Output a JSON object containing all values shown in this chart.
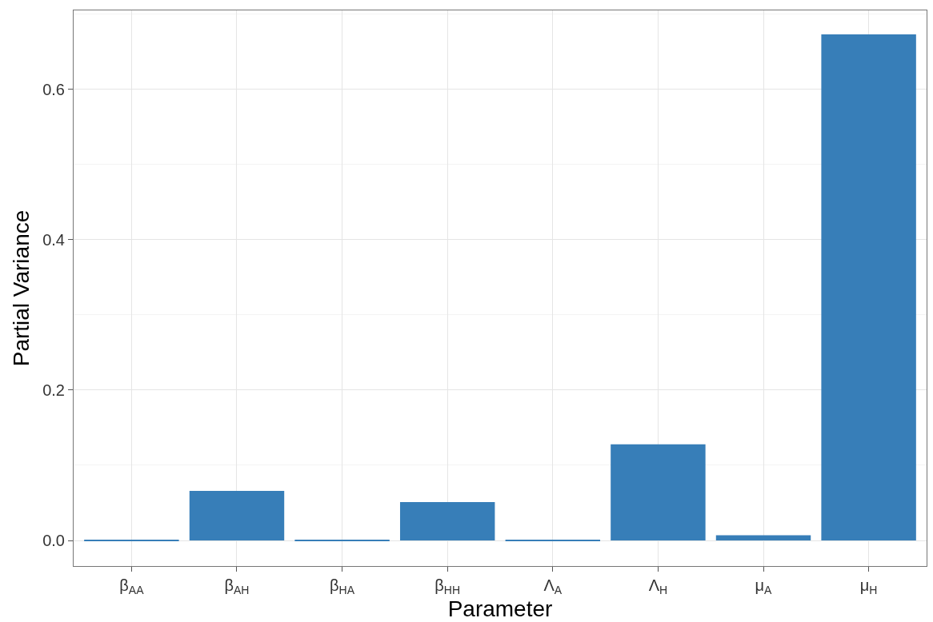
{
  "chart_data": {
    "type": "bar",
    "xlabel": "Parameter",
    "ylabel": "Partial Variance",
    "categories": [
      "β$_{AA}$",
      "β$_{AH}$",
      "β$_{HA}$",
      "β$_{HH}$",
      "Λ$_{A}$",
      "Λ$_{H}$",
      "μ$_{A}$",
      "μ$_{H}$"
    ],
    "values": [
      0.001,
      0.066,
      0.001,
      0.051,
      0.001,
      0.128,
      0.007,
      0.673
    ],
    "color": "#377eb8",
    "ylim": [
      -0.034,
      0.705
    ],
    "yticks": [
      {
        "value": 0,
        "label": "0.0"
      },
      {
        "value": 0.2,
        "label": "0.2"
      },
      {
        "value": 0.4,
        "label": "0.4"
      },
      {
        "value": 0.6,
        "label": "0.6"
      }
    ],
    "grid": true
  }
}
